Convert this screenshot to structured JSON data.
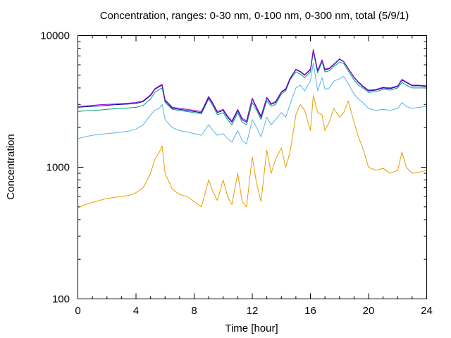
{
  "chart_data": {
    "type": "line",
    "title": "Concentration, ranges: 0-30 nm, 0-100 nm, 0-300 nm, total (5/9/1)",
    "xlabel": "Time [hour]",
    "ylabel": "Concentration",
    "xlim": [
      0,
      24
    ],
    "ylim": [
      100,
      10000
    ],
    "yscale": "log",
    "grid": false,
    "x_ticks": [
      0,
      4,
      8,
      12,
      16,
      20,
      24
    ],
    "x_tick_labels": [
      "0",
      "4",
      "8",
      "12",
      "16",
      "20",
      "24"
    ],
    "y_major_ticks": [
      100,
      1000,
      10000
    ],
    "y_tick_labels": [
      "100",
      "1000",
      "10000"
    ],
    "x": [
      0,
      0.5,
      1,
      1.5,
      2,
      2.5,
      3,
      3.5,
      4,
      4.5,
      5,
      5.3,
      5.6,
      5.8,
      6,
      6.5,
      7,
      7.5,
      8,
      8.5,
      9,
      9.3,
      9.6,
      10,
      10.3,
      10.6,
      11,
      11.3,
      11.6,
      12,
      12.3,
      12.6,
      13,
      13.3,
      13.6,
      14,
      14.3,
      14.6,
      15,
      15.3,
      15.6,
      16,
      16.2,
      16.5,
      16.8,
      17,
      17.3,
      17.6,
      18,
      18.3,
      18.6,
      19,
      19.3,
      19.6,
      20,
      20.5,
      21,
      21.5,
      22,
      22.3,
      22.6,
      23,
      23.5,
      24
    ],
    "series": [
      {
        "color": "#e69f00",
        "values": [
          490,
          520,
          540,
          560,
          580,
          590,
          600,
          610,
          640,
          700,
          900,
          1150,
          1300,
          1450,
          900,
          680,
          620,
          600,
          550,
          500,
          800,
          650,
          560,
          800,
          600,
          520,
          900,
          550,
          500,
          1200,
          750,
          550,
          1350,
          900,
          1150,
          1400,
          1000,
          1300,
          2500,
          3000,
          2700,
          1900,
          3500,
          2600,
          2500,
          1900,
          2200,
          2800,
          2400,
          2600,
          3200,
          2200,
          1700,
          1400,
          1000,
          950,
          980,
          900,
          950,
          1300,
          1000,
          900,
          920,
          950
        ]
      },
      {
        "color": "#56b4e9",
        "values": [
          1650,
          1700,
          1750,
          1780,
          1800,
          1820,
          1850,
          1880,
          1950,
          2100,
          2500,
          2700,
          2800,
          3000,
          2300,
          2000,
          1900,
          1850,
          1800,
          1750,
          2100,
          1900,
          1750,
          1800,
          1650,
          1550,
          1900,
          1600,
          1500,
          2300,
          2000,
          1700,
          2400,
          2100,
          2300,
          2600,
          2400,
          3000,
          4000,
          4200,
          3800,
          4500,
          6200,
          3800,
          4800,
          3900,
          4000,
          4500,
          4700,
          4900,
          4300,
          3600,
          3300,
          3100,
          2800,
          2700,
          2750,
          2700,
          2800,
          3100,
          2900,
          2800,
          2850,
          2900
        ]
      },
      {
        "color": "#009e73",
        "values": [
          2650,
          2680,
          2700,
          2720,
          2750,
          2780,
          2800,
          2820,
          2850,
          2950,
          3300,
          3700,
          3900,
          4000,
          3100,
          2750,
          2700,
          2650,
          2600,
          2550,
          3300,
          2900,
          2500,
          2600,
          2300,
          2100,
          2600,
          2200,
          2100,
          3100,
          2700,
          2300,
          3200,
          2900,
          3000,
          3600,
          3800,
          4600,
          5300,
          5100,
          4800,
          5300,
          7500,
          5200,
          6300,
          5300,
          5400,
          5800,
          6300,
          6100,
          5400,
          4600,
          4200,
          4000,
          3700,
          3750,
          3900,
          3850,
          4000,
          4400,
          4200,
          4000,
          4000,
          4000
        ]
      },
      {
        "color": "#0000aa",
        "values": [
          2850,
          2880,
          2900,
          2920,
          2950,
          2980,
          3000,
          3020,
          3050,
          3150,
          3500,
          3900,
          4100,
          4200,
          3200,
          2800,
          2750,
          2700,
          2650,
          2600,
          3400,
          3000,
          2600,
          2700,
          2400,
          2200,
          2700,
          2300,
          2200,
          3300,
          2800,
          2400,
          3350,
          3000,
          3100,
          3700,
          3900,
          4700,
          5500,
          5300,
          5000,
          5500,
          7800,
          5400,
          6500,
          5500,
          5600,
          6000,
          6600,
          6300,
          5600,
          4800,
          4400,
          4100,
          3800,
          3850,
          4000,
          3950,
          4100,
          4600,
          4400,
          4150,
          4150,
          4100
        ]
      },
      {
        "color": "#9400d3",
        "values": [
          2900,
          2920,
          2950,
          2980,
          3000,
          3020,
          3050,
          3070,
          3100,
          3200,
          3550,
          3950,
          4150,
          4250,
          3250,
          2850,
          2800,
          2750,
          2700,
          2650,
          3450,
          3050,
          2650,
          2750,
          2450,
          2250,
          2750,
          2350,
          2250,
          3350,
          2850,
          2450,
          3400,
          3050,
          3150,
          3750,
          3950,
          4750,
          5550,
          5350,
          5050,
          5550,
          7850,
          5450,
          6550,
          5550,
          5650,
          6050,
          6650,
          6350,
          5650,
          4850,
          4450,
          4150,
          3850,
          3900,
          4050,
          4000,
          4150,
          4650,
          4450,
          4200,
          4200,
          4150
        ]
      }
    ]
  }
}
